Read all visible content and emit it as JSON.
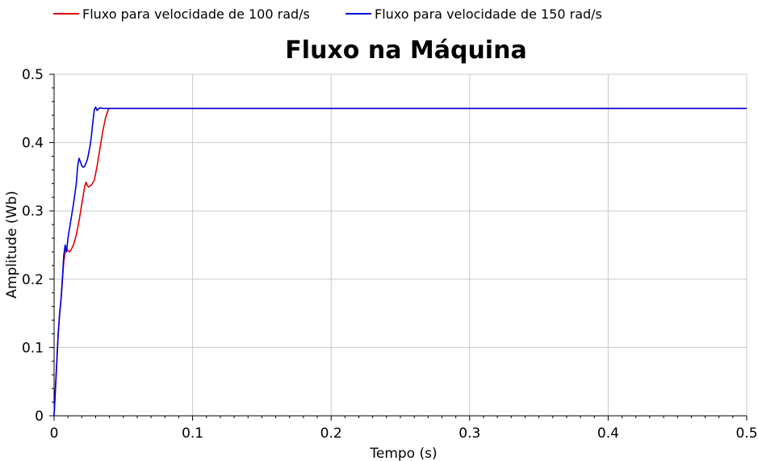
{
  "chart_data": {
    "type": "line",
    "title": "Fluxo na Máquina",
    "xlabel": "Tempo (s)",
    "ylabel": "Amplitude (Wb)",
    "xlim": [
      0,
      0.5
    ],
    "ylim": [
      0,
      0.5
    ],
    "xticks": [
      0,
      0.1,
      0.2,
      0.3,
      0.4,
      0.5
    ],
    "xtick_labels": [
      "0",
      "0.1",
      "0.2",
      "0.3",
      "0.4",
      "0.5"
    ],
    "yticks": [
      0,
      0.1,
      0.2,
      0.3,
      0.4,
      0.5
    ],
    "ytick_labels": [
      "0",
      "0.1",
      "0.2",
      "0.3",
      "0.4",
      "0.5"
    ],
    "grid": true,
    "legend_position": "top-left",
    "series": [
      {
        "name": "Fluxo para velocidade de 100 rad/s",
        "color": "#dd0000",
        "x": [
          0,
          0.001,
          0.002,
          0.003,
          0.004,
          0.005,
          0.006,
          0.007,
          0.008,
          0.009,
          0.01,
          0.011,
          0.012,
          0.014,
          0.016,
          0.018,
          0.02,
          0.022,
          0.023,
          0.024,
          0.025,
          0.027,
          0.029,
          0.031,
          0.033,
          0.035,
          0.037,
          0.039,
          0.04,
          0.05,
          0.1,
          0.2,
          0.3,
          0.4,
          0.5
        ],
        "y": [
          0,
          0.04,
          0.08,
          0.12,
          0.15,
          0.17,
          0.2,
          0.225,
          0.24,
          0.245,
          0.242,
          0.24,
          0.242,
          0.25,
          0.265,
          0.285,
          0.31,
          0.335,
          0.342,
          0.337,
          0.335,
          0.338,
          0.345,
          0.365,
          0.39,
          0.415,
          0.435,
          0.448,
          0.45,
          0.45,
          0.45,
          0.45,
          0.45,
          0.45,
          0.45
        ]
      },
      {
        "name": "Fluxo para velocidade de 150 rad/s",
        "color": "#0000dd",
        "x": [
          0,
          0.001,
          0.002,
          0.003,
          0.004,
          0.005,
          0.006,
          0.007,
          0.008,
          0.009,
          0.01,
          0.012,
          0.014,
          0.016,
          0.017,
          0.018,
          0.019,
          0.02,
          0.021,
          0.022,
          0.024,
          0.026,
          0.027,
          0.028,
          0.029,
          0.03,
          0.031,
          0.032,
          0.033,
          0.035,
          0.04,
          0.1,
          0.2,
          0.3,
          0.4,
          0.5
        ],
        "y": [
          0,
          0.04,
          0.08,
          0.12,
          0.15,
          0.17,
          0.2,
          0.235,
          0.25,
          0.24,
          0.26,
          0.285,
          0.31,
          0.34,
          0.365,
          0.377,
          0.372,
          0.366,
          0.364,
          0.365,
          0.375,
          0.395,
          0.41,
          0.43,
          0.448,
          0.452,
          0.447,
          0.449,
          0.451,
          0.45,
          0.45,
          0.45,
          0.45,
          0.45,
          0.45,
          0.45
        ]
      }
    ]
  }
}
